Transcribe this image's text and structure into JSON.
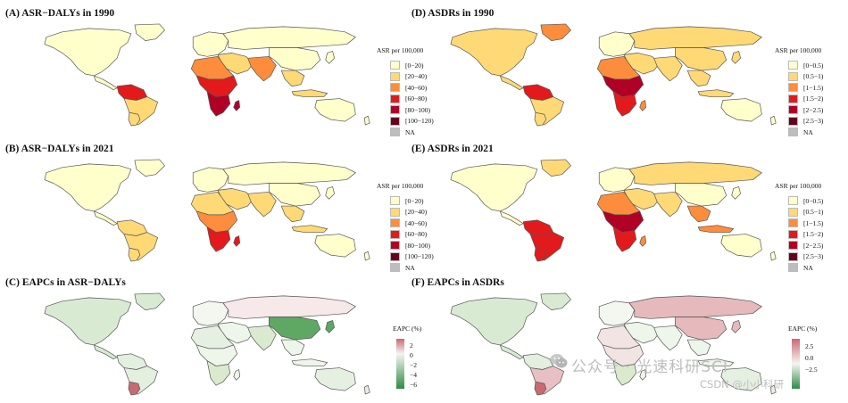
{
  "panels": {
    "A": {
      "title": "(A) ASR−DALYs in 1990",
      "legend_title": "ASR per 100,000",
      "legend_items": [
        "[0−20)",
        "[20−40)",
        "[40−60)",
        "[60−80)",
        "[80−100)",
        "[100−120)",
        "NA"
      ],
      "legend_colors": [
        "#ffffcc",
        "#fed976",
        "#fd8d3c",
        "#e31a1c",
        "#b10026",
        "#67001f",
        "#bdbdbd"
      ]
    },
    "B": {
      "title": "(B) ASR−DALYs in 2021",
      "legend_title": "ASR per 100,000",
      "legend_items": [
        "[0−20)",
        "[20−40)",
        "[40−60)",
        "[60−80)",
        "[80−100)",
        "[100−120)",
        "NA"
      ],
      "legend_colors": [
        "#ffffcc",
        "#fed976",
        "#fd8d3c",
        "#e31a1c",
        "#b10026",
        "#67001f",
        "#bdbdbd"
      ]
    },
    "C": {
      "title": "(C) EAPCs in ASR−DALYs",
      "legend_title": "EAPC (%)",
      "ticks": [
        "2",
        "0",
        "−2",
        "−4",
        "−6"
      ]
    },
    "D": {
      "title": "(D) ASDRs in 1990",
      "legend_title": "ASR per 100,000",
      "legend_items": [
        "[0−0.5)",
        "[0.5−1)",
        "[1−1.5)",
        "[1.5−2)",
        "[2−2.5)",
        "[2.5−3)",
        "NA"
      ],
      "legend_colors": [
        "#ffffcc",
        "#fed976",
        "#fd8d3c",
        "#e31a1c",
        "#b10026",
        "#67001f",
        "#bdbdbd"
      ]
    },
    "E": {
      "title": "(E) ASDRs in 2021",
      "legend_title": "ASR per 100,000",
      "legend_items": [
        "[0−0.5)",
        "[0.5−1)",
        "[1−1.5)",
        "[1.5−2)",
        "[2−2.5)",
        "[2.5−3)",
        "NA"
      ],
      "legend_colors": [
        "#ffffcc",
        "#fed976",
        "#fd8d3c",
        "#e31a1c",
        "#b10026",
        "#67001f",
        "#bdbdbd"
      ]
    },
    "F": {
      "title": "(F) EAPCs in ASDRs",
      "legend_title": "EAPC (%)",
      "ticks": [
        "2.5",
        "0.0",
        "−2.5"
      ]
    }
  },
  "region_colors": {
    "A": {
      "na": "#ffffcc",
      "greenland": "#ffffcc",
      "sa": "#fed976",
      "sa_n": "#e31a1c",
      "eu": "#ffffcc",
      "ru": "#ffffcc",
      "me": "#fed976",
      "af_n": "#fd8d3c",
      "af_c": "#e31a1c",
      "af_s": "#b10026",
      "sasia": "#fd8d3c",
      "china": "#ffffcc",
      "sea": "#fed976",
      "aus": "#ffffcc",
      "mad": "#b10026"
    },
    "B": {
      "na": "#ffffcc",
      "greenland": "#ffffcc",
      "sa": "#fed976",
      "sa_n": "#fed976",
      "eu": "#ffffcc",
      "ru": "#ffffcc",
      "me": "#fed976",
      "af_n": "#fed976",
      "af_c": "#fd8d3c",
      "af_s": "#e31a1c",
      "sasia": "#fed976",
      "china": "#ffffcc",
      "sea": "#fed976",
      "aus": "#ffffcc",
      "mad": "#e31a1c"
    },
    "C": {
      "na": "#d9ead3",
      "greenland": "#d9ead3",
      "sa": "#e3efdf",
      "sa_n": "#e3efdf",
      "sa_s": "#c96a72",
      "eu": "#f3f7f0",
      "ru": "#f7e9e9",
      "me": "#eef5ea",
      "af_n": "#e6f0e2",
      "af_c": "#eef5ea",
      "af_s": "#dbeacf",
      "sasia": "#dbeacf",
      "china": "#5fa864",
      "sea": "#eef5ea",
      "aus": "#e6f0e2",
      "mad": "#eef5ea"
    },
    "D": {
      "na": "#fed976",
      "greenland": "#fd8d3c",
      "sa": "#fed976",
      "sa_n": "#e31a1c",
      "eu": "#ffffcc",
      "ru": "#fed976",
      "me": "#fed976",
      "af_n": "#fd8d3c",
      "af_c": "#b10026",
      "af_s": "#e31a1c",
      "sasia": "#fed976",
      "china": "#fed976",
      "sea": "#fed976",
      "aus": "#ffffcc",
      "mad": "#fd8d3c"
    },
    "E": {
      "na": "#ffffcc",
      "greenland": "#fed976",
      "sa": "#e31a1c",
      "sa_n": "#e31a1c",
      "eu": "#ffffcc",
      "ru": "#fed976",
      "me": "#fed976",
      "af_n": "#fd8d3c",
      "af_c": "#b10026",
      "af_s": "#e31a1c",
      "sasia": "#fed976",
      "china": "#ffffcc",
      "sea": "#fd8d3c",
      "aus": "#ffffcc",
      "mad": "#fd8d3c"
    },
    "F": {
      "na": "#d9ead3",
      "greenland": "#d9ead3",
      "sa": "#e8bfc2",
      "sa_n": "#e3efdf",
      "sa_s": "#c96a72",
      "eu": "#f3f7f0",
      "ru": "#e6b9bd",
      "me": "#eef5ea",
      "af_n": "#f3e4e4",
      "af_c": "#f3e4e4",
      "af_s": "#dbeacf",
      "sasia": "#eef5ea",
      "china": "#e6b9bd",
      "sea": "#eef5ea",
      "aus": "#e6f0e2",
      "mad": "#eef5ea"
    }
  },
  "watermark": {
    "line1": "公众号 · 光速科研SCI",
    "line2": "CSDN @小小科研"
  }
}
